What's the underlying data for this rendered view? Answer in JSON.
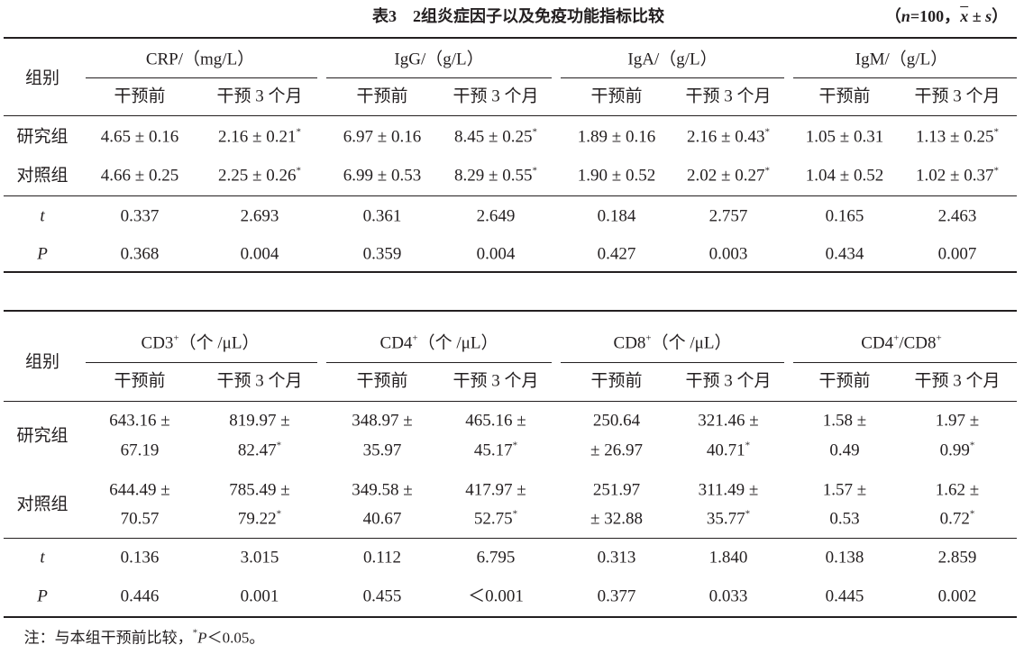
{
  "title": "表3　2组炎症因子以及免疫功能指标比较",
  "subtitle": [
    "（",
    {
      "italic": "n"
    },
    "=100，",
    {
      "overline": "x"
    },
    " ± ",
    {
      "italic": "s"
    },
    "）"
  ],
  "tables": [
    {
      "group_header": "组别",
      "columns": [
        [
          "CRP/（mg/L）"
        ],
        [
          "IgG/（g/L）"
        ],
        [
          "IgA/（g/L）"
        ],
        [
          "IgM/（g/L）"
        ]
      ],
      "subheaders": [
        "干预前",
        "干预 3 个月"
      ],
      "rows": [
        {
          "label": "研究组",
          "cells": [
            "4.65 ± 0.16",
            {
              "lines": [
                "2.16 ± 0.21"
              ],
              "sup": "*"
            },
            "6.97 ± 0.16",
            {
              "lines": [
                "8.45 ± 0.25"
              ],
              "sup": "*"
            },
            "1.89 ± 0.16",
            {
              "lines": [
                "2.16 ± 0.43"
              ],
              "sup": "*"
            },
            "1.05 ± 0.31",
            {
              "lines": [
                "1.13 ± 0.25"
              ],
              "sup": "*"
            }
          ]
        },
        {
          "label": "对照组",
          "cells": [
            "4.66 ± 0.25",
            {
              "lines": [
                "2.25 ± 0.26"
              ],
              "sup": "*"
            },
            "6.99 ± 0.53",
            {
              "lines": [
                "8.29 ± 0.55"
              ],
              "sup": "*"
            },
            "1.90 ± 0.52",
            {
              "lines": [
                "2.02 ± 0.27"
              ],
              "sup": "*"
            },
            "1.04 ± 0.52",
            {
              "lines": [
                "1.02 ± 0.37"
              ],
              "sup": "*"
            }
          ]
        },
        {
          "label": "t",
          "italic": true,
          "cells": [
            "0.337",
            "2.693",
            "0.361",
            "2.649",
            "0.184",
            "2.757",
            "0.165",
            "2.463"
          ]
        },
        {
          "label": "P",
          "italic": true,
          "cells": [
            "0.368",
            "0.004",
            "0.359",
            "0.004",
            "0.427",
            "0.003",
            "0.434",
            "0.007"
          ]
        }
      ]
    },
    {
      "group_header": "组别",
      "columns": [
        [
          "CD3",
          {
            "sup": "+"
          },
          "（个 /μL）"
        ],
        [
          "CD4",
          {
            "sup": "+"
          },
          "（个 /μL）"
        ],
        [
          "CD8",
          {
            "sup": "+"
          },
          "（个 /μL）"
        ],
        [
          "CD4",
          {
            "sup": "+"
          },
          "/CD8",
          {
            "sup": "+"
          }
        ]
      ],
      "subheaders": [
        "干预前",
        "干预 3 个月"
      ],
      "rows": [
        {
          "label": "研究组",
          "cells": [
            {
              "lines": [
                "643.16 ±",
                "67.19"
              ]
            },
            {
              "lines": [
                "819.97 ±",
                "82.47"
              ],
              "sup": "*"
            },
            {
              "lines": [
                "348.97 ±",
                "35.97"
              ]
            },
            {
              "lines": [
                "465.16 ±",
                "45.17"
              ],
              "sup": "*"
            },
            {
              "lines": [
                "250.64",
                "± 26.97"
              ]
            },
            {
              "lines": [
                "321.46 ±",
                "40.71"
              ],
              "sup": "*"
            },
            {
              "lines": [
                "1.58 ±",
                "0.49"
              ]
            },
            {
              "lines": [
                "1.97 ±",
                "0.99"
              ],
              "sup": "*"
            }
          ]
        },
        {
          "label": "对照组",
          "cells": [
            {
              "lines": [
                "644.49 ±",
                "70.57"
              ]
            },
            {
              "lines": [
                "785.49 ±",
                "79.22"
              ],
              "sup": "*"
            },
            {
              "lines": [
                "349.58 ±",
                "40.67"
              ]
            },
            {
              "lines": [
                "417.97 ±",
                "52.75"
              ],
              "sup": "*"
            },
            {
              "lines": [
                "251.97",
                "± 32.88"
              ]
            },
            {
              "lines": [
                "311.49 ±",
                "35.77"
              ],
              "sup": "*"
            },
            {
              "lines": [
                "1.57 ±",
                "0.53"
              ]
            },
            {
              "lines": [
                "1.62 ±",
                "0.72"
              ],
              "sup": "*"
            }
          ]
        },
        {
          "label": "t",
          "italic": true,
          "cells": [
            "0.136",
            "3.015",
            "0.112",
            "6.795",
            "0.313",
            "1.840",
            "0.138",
            "2.859"
          ]
        },
        {
          "label": "P",
          "italic": true,
          "cells": [
            "0.446",
            "0.001",
            "0.455",
            "＜0.001",
            "0.377",
            "0.033",
            "0.445",
            "0.002"
          ]
        }
      ]
    }
  ],
  "footnote": [
    "注：与本组干预前比较，",
    {
      "sup": "*"
    },
    {
      "italic": "P"
    },
    "＜0.05。"
  ]
}
